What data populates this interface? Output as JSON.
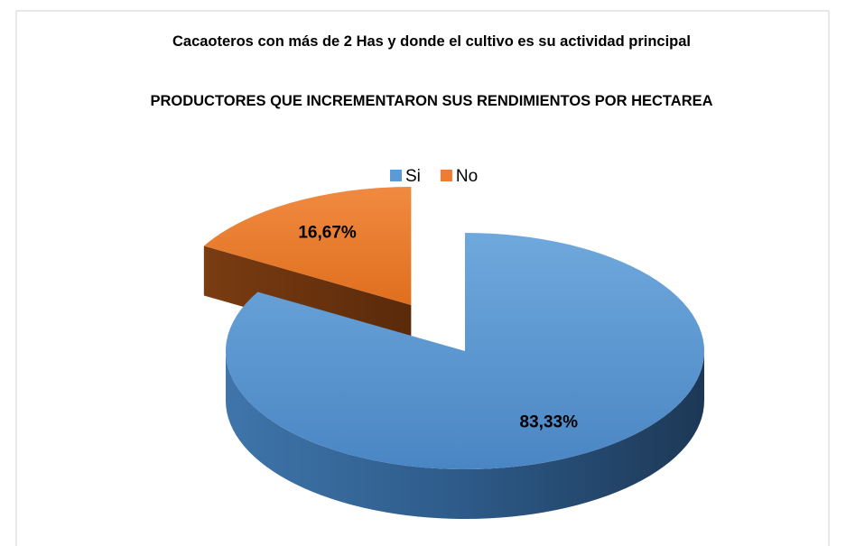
{
  "chart_data": {
    "type": "pie3d",
    "title": "Cacaoteros con más de 2 Has y  donde el cultivo es su actividad principal",
    "subtitle": "PRODUCTORES QUE INCREMENTARON SUS RENDIMIENTOS POR HECTAREA",
    "categories": [
      "Si",
      "No"
    ],
    "values": [
      83.33,
      16.67
    ],
    "value_labels": [
      "83,33%",
      "16,67%"
    ],
    "colors": [
      "#5b9bd5",
      "#ed7d31"
    ],
    "legend": "top"
  }
}
